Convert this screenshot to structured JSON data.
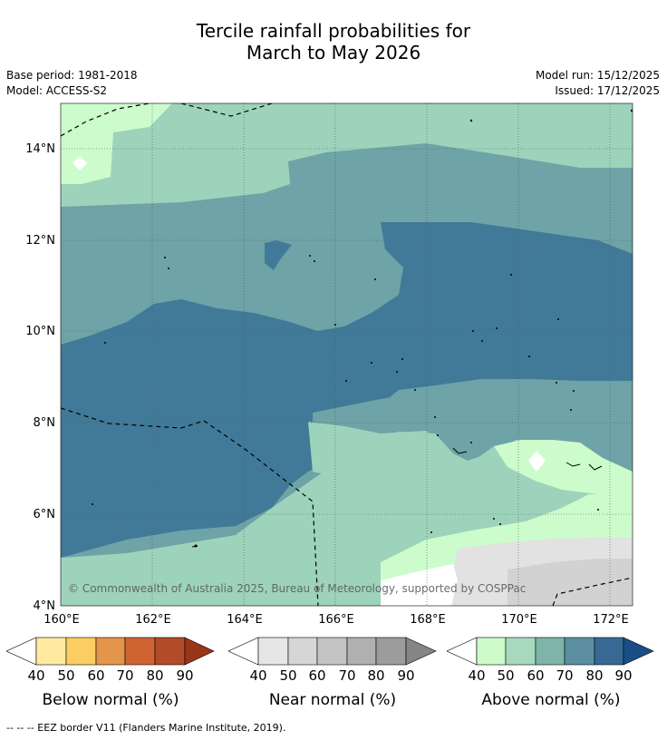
{
  "title_line1": "Tercile rainfall probabilities for",
  "title_line2": "March to May 2026",
  "base_period": "Base period: 1981-2018",
  "model": "Model: ACCESS-S2",
  "model_run": "Model run: 15/12/2025",
  "issued": "Issued: 17/12/2025",
  "copyright": "© Commonwealth of Australia 2025, Bureau of Meteorology, supported by COSPPac",
  "lat_labels": [
    "14°N",
    "12°N",
    "10°N",
    "8°N",
    "6°N",
    "4°N"
  ],
  "lon_labels": [
    "160°E",
    "162°E",
    "164°E",
    "166°E",
    "168°E",
    "170°E",
    "172°E"
  ],
  "legend": {
    "ticks": [
      "40",
      "50",
      "60",
      "70",
      "80",
      "90"
    ],
    "below": {
      "label": "Below normal (%)",
      "colors": [
        "#ffffff",
        "#ffeaa0",
        "#fccd62",
        "#e3954a",
        "#cf6332",
        "#b44b28",
        "#99361a"
      ]
    },
    "near": {
      "label": "Near normal (%)",
      "colors": [
        "#ffffff",
        "#e6e6e6",
        "#d6d6d6",
        "#c4c4c4",
        "#b0b0b0",
        "#9c9c9c",
        "#858585"
      ]
    },
    "above": {
      "label": "Above normal (%)",
      "colors": [
        "#ffffff",
        "#cdfcca",
        "#a7d9bd",
        "#7fb4a8",
        "#5b8fa0",
        "#386994",
        "#1a4d86"
      ]
    }
  },
  "map_colors": {
    "above_40_50": "#ccfccb",
    "above_50_60": "#9dd3ba",
    "above_60_70": "#6ea3a7",
    "above_70_80": "#417a98",
    "near_50_60": "#e2e2e2",
    "near_60_70": "#d2d2d2"
  },
  "footnote": "--  --  -- EEZ border V11 (Flanders Marine Institute, 2019)."
}
